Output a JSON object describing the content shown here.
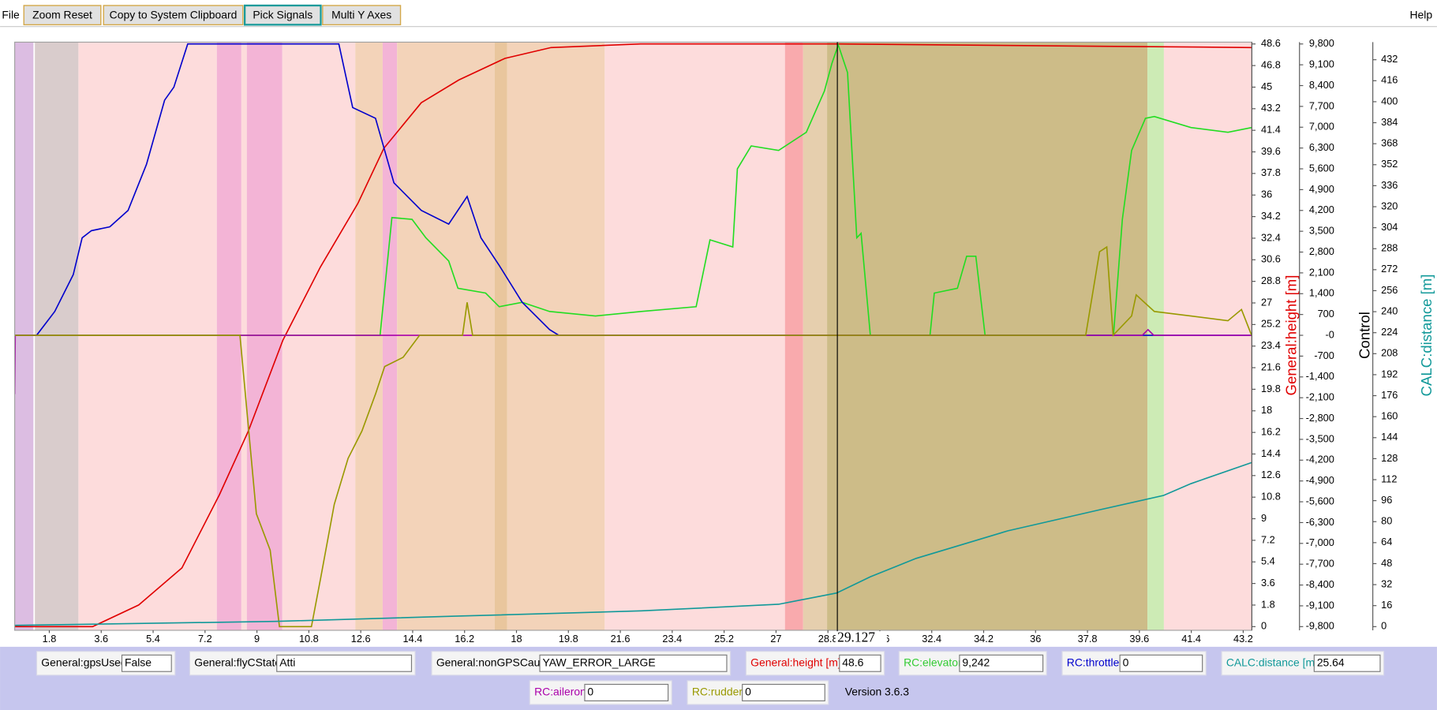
{
  "menu": {
    "file": "File",
    "help": "Help"
  },
  "toolbar": {
    "buttons": [
      "Zoom Reset",
      "Copy to System Clipboard",
      "Pick Signals",
      "Multi Y Axes"
    ]
  },
  "chart_data": {
    "type": "line",
    "xlim": [
      0.6,
      43.5
    ],
    "xticks": [
      1.8,
      3.6,
      5.4,
      7.2,
      9,
      10.8,
      12.6,
      14.4,
      16.2,
      18,
      19.8,
      21.6,
      23.4,
      25.2,
      27,
      28.8,
      30.6,
      32.4,
      34.2,
      36,
      37.8,
      39.6,
      41.4,
      43.2
    ],
    "ylabel": "General:height [m]",
    "ylim": [
      0,
      48.6
    ],
    "yticks": [
      0,
      1.8,
      3.6,
      5.4,
      7.2,
      9,
      10.8,
      12.6,
      14.4,
      16.2,
      18,
      19.8,
      21.6,
      23.4,
      25.2,
      27,
      28.8,
      30.6,
      32.4,
      34.2,
      36,
      37.8,
      39.6,
      41.4,
      43.2,
      45,
      46.8,
      48.6
    ],
    "y2label": "Control",
    "y2lim": [
      -9800,
      9800
    ],
    "y2ticks": [
      {
        "value": 9800,
        "label": "9,800"
      },
      {
        "value": 9100,
        "label": "9,100"
      },
      {
        "value": 8400,
        "label": "8,400"
      },
      {
        "value": 7700,
        "label": "7,700"
      },
      {
        "value": 7000,
        "label": "7,000"
      },
      {
        "value": 6300,
        "label": "6,300"
      },
      {
        "value": 5600,
        "label": "5,600"
      },
      {
        "value": 4900,
        "label": "4,900"
      },
      {
        "value": 4200,
        "label": "4,200"
      },
      {
        "value": 3500,
        "label": "3,500"
      },
      {
        "value": 2800,
        "label": "2,800"
      },
      {
        "value": 2100,
        "label": "2,100"
      },
      {
        "value": 1400,
        "label": "1,400"
      },
      700,
      {
        "value": 0,
        "label": "-0"
      },
      -700,
      {
        "value": -1400,
        "label": "-1,400"
      },
      {
        "value": -2100,
        "label": "-2,100"
      },
      {
        "value": -2800,
        "label": "-2,800"
      },
      {
        "value": -3500,
        "label": "-3,500"
      },
      {
        "value": -4200,
        "label": "-4,200"
      },
      {
        "value": -4900,
        "label": "-4,900"
      },
      {
        "value": -5600,
        "label": "-5,600"
      },
      {
        "value": -6300,
        "label": "-6,300"
      },
      {
        "value": -7000,
        "label": "-7,000"
      },
      {
        "value": -7700,
        "label": "-7,700"
      },
      {
        "value": -8400,
        "label": "-8,400"
      },
      {
        "value": -9100,
        "label": "-9,100"
      },
      {
        "value": -9800,
        "label": "-9,800"
      }
    ],
    "y3label": "CALC:distance [m]",
    "y3lim": [
      0,
      444
    ],
    "y3ticks": [
      0,
      16,
      32,
      48,
      64,
      80,
      96,
      112,
      128,
      144,
      160,
      176,
      192,
      208,
      224,
      240,
      256,
      272,
      288,
      304,
      320,
      336,
      352,
      368,
      384,
      400,
      416,
      432
    ],
    "bands": [
      {
        "from": 0.6,
        "to": 1.25,
        "color": "#dcbde2"
      },
      {
        "from": 1.3,
        "to": 2.81,
        "color": "#d9cccc"
      },
      {
        "from": 2.81,
        "to": 7.61,
        "color": "#fddcdc"
      },
      {
        "from": 7.61,
        "to": 8.46,
        "color": "#f3b4d6"
      },
      {
        "from": 8.46,
        "to": 8.65,
        "color": "#fddcdc"
      },
      {
        "from": 8.65,
        "to": 9.88,
        "color": "#f3b4d6"
      },
      {
        "from": 9.88,
        "to": 12.41,
        "color": "#fddcdc"
      },
      {
        "from": 12.41,
        "to": 13.36,
        "color": "#f3d3b9"
      },
      {
        "from": 13.36,
        "to": 13.86,
        "color": "#f3b4d6"
      },
      {
        "from": 13.86,
        "to": 17.24,
        "color": "#f3d3b9"
      },
      {
        "from": 17.24,
        "to": 17.68,
        "color": "#e9c69d"
      },
      {
        "from": 17.68,
        "to": 21.06,
        "color": "#f3d3b9"
      },
      {
        "from": 21.06,
        "to": 27.31,
        "color": "#fddcdc"
      },
      {
        "from": 27.31,
        "to": 27.94,
        "color": "#f9aaad"
      },
      {
        "from": 27.94,
        "to": 28.77,
        "color": "#e6cfae"
      },
      {
        "from": 28.77,
        "to": 39.88,
        "color": "#cdbc88"
      },
      {
        "from": 39.88,
        "to": 40.45,
        "color": "#cdebb5"
      },
      {
        "from": 40.45,
        "to": 43.5,
        "color": "#fddcdc"
      }
    ],
    "series": [
      {
        "name": "General:height [m]",
        "color": "#e00000",
        "axis": "y",
        "x": [
          0.6,
          3.3,
          4.9,
          6.4,
          7.7,
          8.7,
          9.9,
          11.2,
          12.5,
          13.4,
          14.7,
          16,
          17.6,
          19.2,
          22.3,
          29.1,
          43.5
        ],
        "values": [
          0,
          0,
          1.8,
          4.9,
          11,
          16.3,
          23.9,
          30,
          35.3,
          39.9,
          43.7,
          45.6,
          47.4,
          48.3,
          48.6,
          48.6,
          48.3
        ]
      },
      {
        "name": "RC:elevator",
        "color": "#22dd22",
        "axis": "y2",
        "x": [
          0.6,
          13.27,
          13.68,
          14.38,
          14.86,
          15.65,
          15.97,
          16.93,
          17.4,
          18.2,
          19.15,
          20.74,
          22.33,
          24.23,
          24.71,
          25.5,
          25.66,
          26.14,
          27.09,
          28.05,
          28.68,
          28.94,
          29.16,
          29.48,
          29.8,
          29.95,
          30.27,
          32.34,
          32.49,
          33.29,
          33.61,
          33.93,
          34.25,
          38.7,
          39.01,
          39.33,
          39.81,
          40.12,
          41.39,
          42.67,
          43.49
        ],
        "values": [
          0,
          0,
          3960,
          3900,
          3280,
          2500,
          1580,
          1420,
          960,
          1110,
          800,
          650,
          800,
          960,
          3210,
          2970,
          5600,
          6370,
          6220,
          6830,
          8220,
          9150,
          9770,
          8840,
          3280,
          3430,
          0,
          0,
          1420,
          1580,
          2660,
          2660,
          0,
          0,
          3900,
          6220,
          7300,
          7360,
          6990,
          6830,
          6990
        ]
      },
      {
        "name": "RC:throttle",
        "color": "#0000cc",
        "axis": "y2",
        "x": [
          0.6,
          1.36,
          1.99,
          2.63,
          2.94,
          3.26,
          3.9,
          4.53,
          5.17,
          5.8,
          6.12,
          6.6,
          11.84,
          12.32,
          13.11,
          13.75,
          14.7,
          15.65,
          16.29,
          16.77,
          17.4,
          18.2,
          19.15,
          19.47,
          43.49
        ],
        "values": [
          0,
          0,
          800,
          2040,
          3280,
          3520,
          3650,
          4200,
          5750,
          7910,
          8350,
          9800,
          9800,
          7660,
          7300,
          5130,
          4200,
          3740,
          4670,
          3280,
          2350,
          1110,
          190,
          0,
          0
        ]
      },
      {
        "name": "RC:aileron",
        "color": "#aa00aa",
        "axis": "y2",
        "x": [
          0.6,
          0.62,
          1.0,
          39.7,
          39.9,
          40.1,
          43.5
        ],
        "values": [
          -1980,
          0,
          0,
          0,
          190,
          0,
          0
        ]
      },
      {
        "name": "RC:rudder",
        "color": "#999900",
        "axis": "y2",
        "x": [
          0.6,
          8.41,
          8.98,
          9.46,
          9.78,
          10.89,
          11.21,
          11.68,
          12.16,
          12.64,
          13.11,
          13.43,
          14.07,
          14.64,
          16.13,
          16.29,
          16.48,
          37.74,
          38.22,
          38.47,
          38.69,
          39.33,
          39.49,
          40.12,
          41.39,
          42.67,
          43.14,
          43.49
        ],
        "values": [
          0,
          0,
          -6000,
          -7230,
          -9800,
          -9800,
          -8160,
          -5690,
          -4140,
          -3220,
          -1980,
          -1050,
          -740,
          0,
          0,
          1110,
          0,
          0,
          2810,
          2970,
          0,
          650,
          1360,
          800,
          650,
          490,
          870,
          0
        ]
      },
      {
        "name": "CALC:distance [m]",
        "color": "#119999",
        "axis": "y3",
        "x": [
          0.6,
          9.62,
          15.97,
          22.33,
          27.09,
          29.1,
          30.27,
          31.86,
          35.04,
          38.22,
          40.44,
          41.39,
          43.49
        ],
        "values": [
          1,
          4,
          8,
          12,
          17,
          25.6,
          38,
          52,
          73,
          89,
          100,
          109,
          125
        ]
      }
    ],
    "cursor": 29.127
  },
  "status": {
    "fields": [
      {
        "label": "General:gpsUsed",
        "value": "False",
        "color": "#000000"
      },
      {
        "label": "General:flyCState",
        "value": "Atti",
        "color": "#000000"
      },
      {
        "label": "General:nonGPSCause",
        "value": "YAW_ERROR_LARGE",
        "color": "#000000"
      },
      {
        "label": "General:height [m]",
        "value": "48.6",
        "color": "#e00000"
      },
      {
        "label": "RC:elevator",
        "value": "9,242",
        "color": "#33cc33"
      },
      {
        "label": "RC:throttle",
        "value": "0",
        "color": "#0000cc"
      },
      {
        "label": "CALC:distance [m]",
        "value": "25.64",
        "color": "#119999"
      },
      {
        "label": "RC:aileron",
        "value": "0",
        "color": "#aa00aa"
      },
      {
        "label": "RC:rudder",
        "value": "0",
        "color": "#999900"
      }
    ],
    "version": "Version 3.6.3"
  }
}
